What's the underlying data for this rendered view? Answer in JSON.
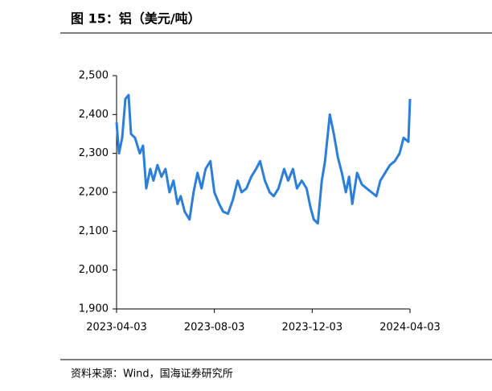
{
  "chart_data": {
    "type": "line",
    "title": "图 15：铝（美元/吨）",
    "source": "资料来源：Wind，国海证券研究所",
    "x": [
      "2023-04-03",
      "2023-04-06",
      "2023-04-10",
      "2023-04-14",
      "2023-04-18",
      "2023-04-21",
      "2023-04-26",
      "2023-05-02",
      "2023-05-06",
      "2023-05-10",
      "2023-05-15",
      "2023-05-19",
      "2023-05-24",
      "2023-05-29",
      "2023-06-03",
      "2023-06-08",
      "2023-06-13",
      "2023-06-18",
      "2023-06-22",
      "2023-06-27",
      "2023-07-03",
      "2023-07-08",
      "2023-07-13",
      "2023-07-18",
      "2023-07-23",
      "2023-07-29",
      "2023-08-03",
      "2023-08-09",
      "2023-08-14",
      "2023-08-20",
      "2023-08-26",
      "2023-09-01",
      "2023-09-06",
      "2023-09-12",
      "2023-09-18",
      "2023-09-24",
      "2023-09-29",
      "2023-10-05",
      "2023-10-11",
      "2023-10-16",
      "2023-10-22",
      "2023-10-29",
      "2023-11-03",
      "2023-11-09",
      "2023-11-14",
      "2023-11-20",
      "2023-11-26",
      "2023-12-01",
      "2023-12-05",
      "2023-12-10",
      "2023-12-15",
      "2023-12-19",
      "2023-12-25",
      "2023-12-30",
      "2024-01-04",
      "2024-01-09",
      "2024-01-14",
      "2024-01-18",
      "2024-01-22",
      "2024-01-28",
      "2024-02-03",
      "2024-02-09",
      "2024-02-15",
      "2024-02-21",
      "2024-02-26",
      "2024-03-03",
      "2024-03-09",
      "2024-03-15",
      "2024-03-21",
      "2024-03-26",
      "2024-04-01",
      "2024-04-03"
    ],
    "series": [
      {
        "name": "铝",
        "color": "#2b7fd9",
        "values": [
          2380,
          2300,
          2340,
          2440,
          2450,
          2350,
          2340,
          2300,
          2320,
          2210,
          2260,
          2230,
          2270,
          2240,
          2260,
          2200,
          2230,
          2170,
          2190,
          2150,
          2130,
          2200,
          2250,
          2210,
          2260,
          2280,
          2200,
          2170,
          2150,
          2145,
          2180,
          2230,
          2200,
          2210,
          2240,
          2260,
          2280,
          2230,
          2200,
          2190,
          2210,
          2260,
          2230,
          2260,
          2210,
          2230,
          2210,
          2160,
          2130,
          2120,
          2230,
          2280,
          2400,
          2350,
          2290,
          2250,
          2200,
          2240,
          2170,
          2250,
          2220,
          2210,
          2200,
          2190,
          2230,
          2250,
          2270,
          2280,
          2300,
          2340,
          2330,
          2440
        ]
      }
    ],
    "xlim": [
      "2023-04-03",
      "2024-04-03"
    ],
    "xticks": [
      "2023-04-03",
      "2023-08-03",
      "2023-12-03",
      "2024-04-03"
    ],
    "ylim": [
      1900,
      2500
    ],
    "yticks": [
      {
        "value": 1900,
        "label": "1,900"
      },
      {
        "value": 2000,
        "label": "2,000"
      },
      {
        "value": 2100,
        "label": "2,100"
      },
      {
        "value": 2200,
        "label": "2,200"
      },
      {
        "value": 2300,
        "label": "2,300"
      },
      {
        "value": 2400,
        "label": "2,400"
      },
      {
        "value": 2500,
        "label": "2,500"
      }
    ],
    "grid": false
  }
}
